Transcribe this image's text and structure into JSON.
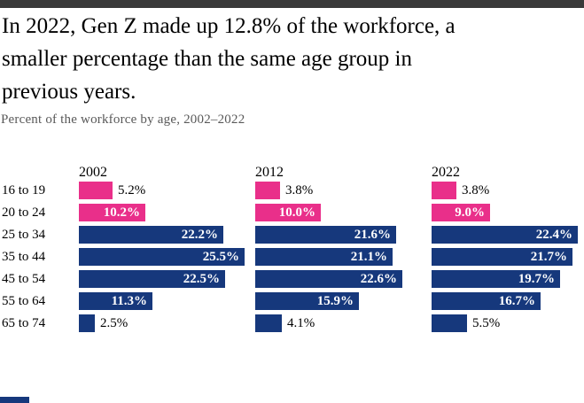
{
  "header": {
    "title_lines": [
      "In 2022, Gen Z made up 12.8% of the workforce, a",
      "smaller percentage than the same age group in",
      "previous years."
    ],
    "subtitle": "Percent of the workforce by age, 2002–2022"
  },
  "colors": {
    "pink": "#e92f8a",
    "navy": "#16387c",
    "top_bar": "#3a3a3a",
    "subtitle_text": "#595959",
    "inside_label": "#ffffff",
    "outside_label": "#000000"
  },
  "chart_data": {
    "type": "bar",
    "orientation": "horizontal",
    "title": "In 2022, Gen Z made up 12.8% of the workforce, a smaller percentage than the same age group in previous years.",
    "subtitle": "Percent of the workforce by age, 2002–2022",
    "categories": [
      "16 to 19",
      "20 to 24",
      "25 to 34",
      "35 to 44",
      "45 to 54",
      "55 to 64",
      "65 to 74"
    ],
    "series": [
      {
        "name": "2002",
        "values": [
          5.2,
          10.2,
          22.2,
          25.5,
          22.5,
          11.3,
          2.5
        ]
      },
      {
        "name": "2012",
        "values": [
          3.8,
          10.0,
          21.6,
          21.1,
          22.6,
          15.9,
          4.1
        ]
      },
      {
        "name": "2022",
        "values": [
          3.8,
          9.0,
          22.4,
          21.7,
          19.7,
          16.7,
          5.5
        ]
      }
    ],
    "value_suffix": "%",
    "value_decimals": 1,
    "highlight_categories": [
      "16 to 19",
      "20 to 24"
    ],
    "legend": "none",
    "axis": "none",
    "xlim": [
      0,
      27
    ],
    "notes": "Pink bars highlight the two youngest age groups; data labels shown on every bar, white inside wide bars, black outside narrow bars."
  }
}
